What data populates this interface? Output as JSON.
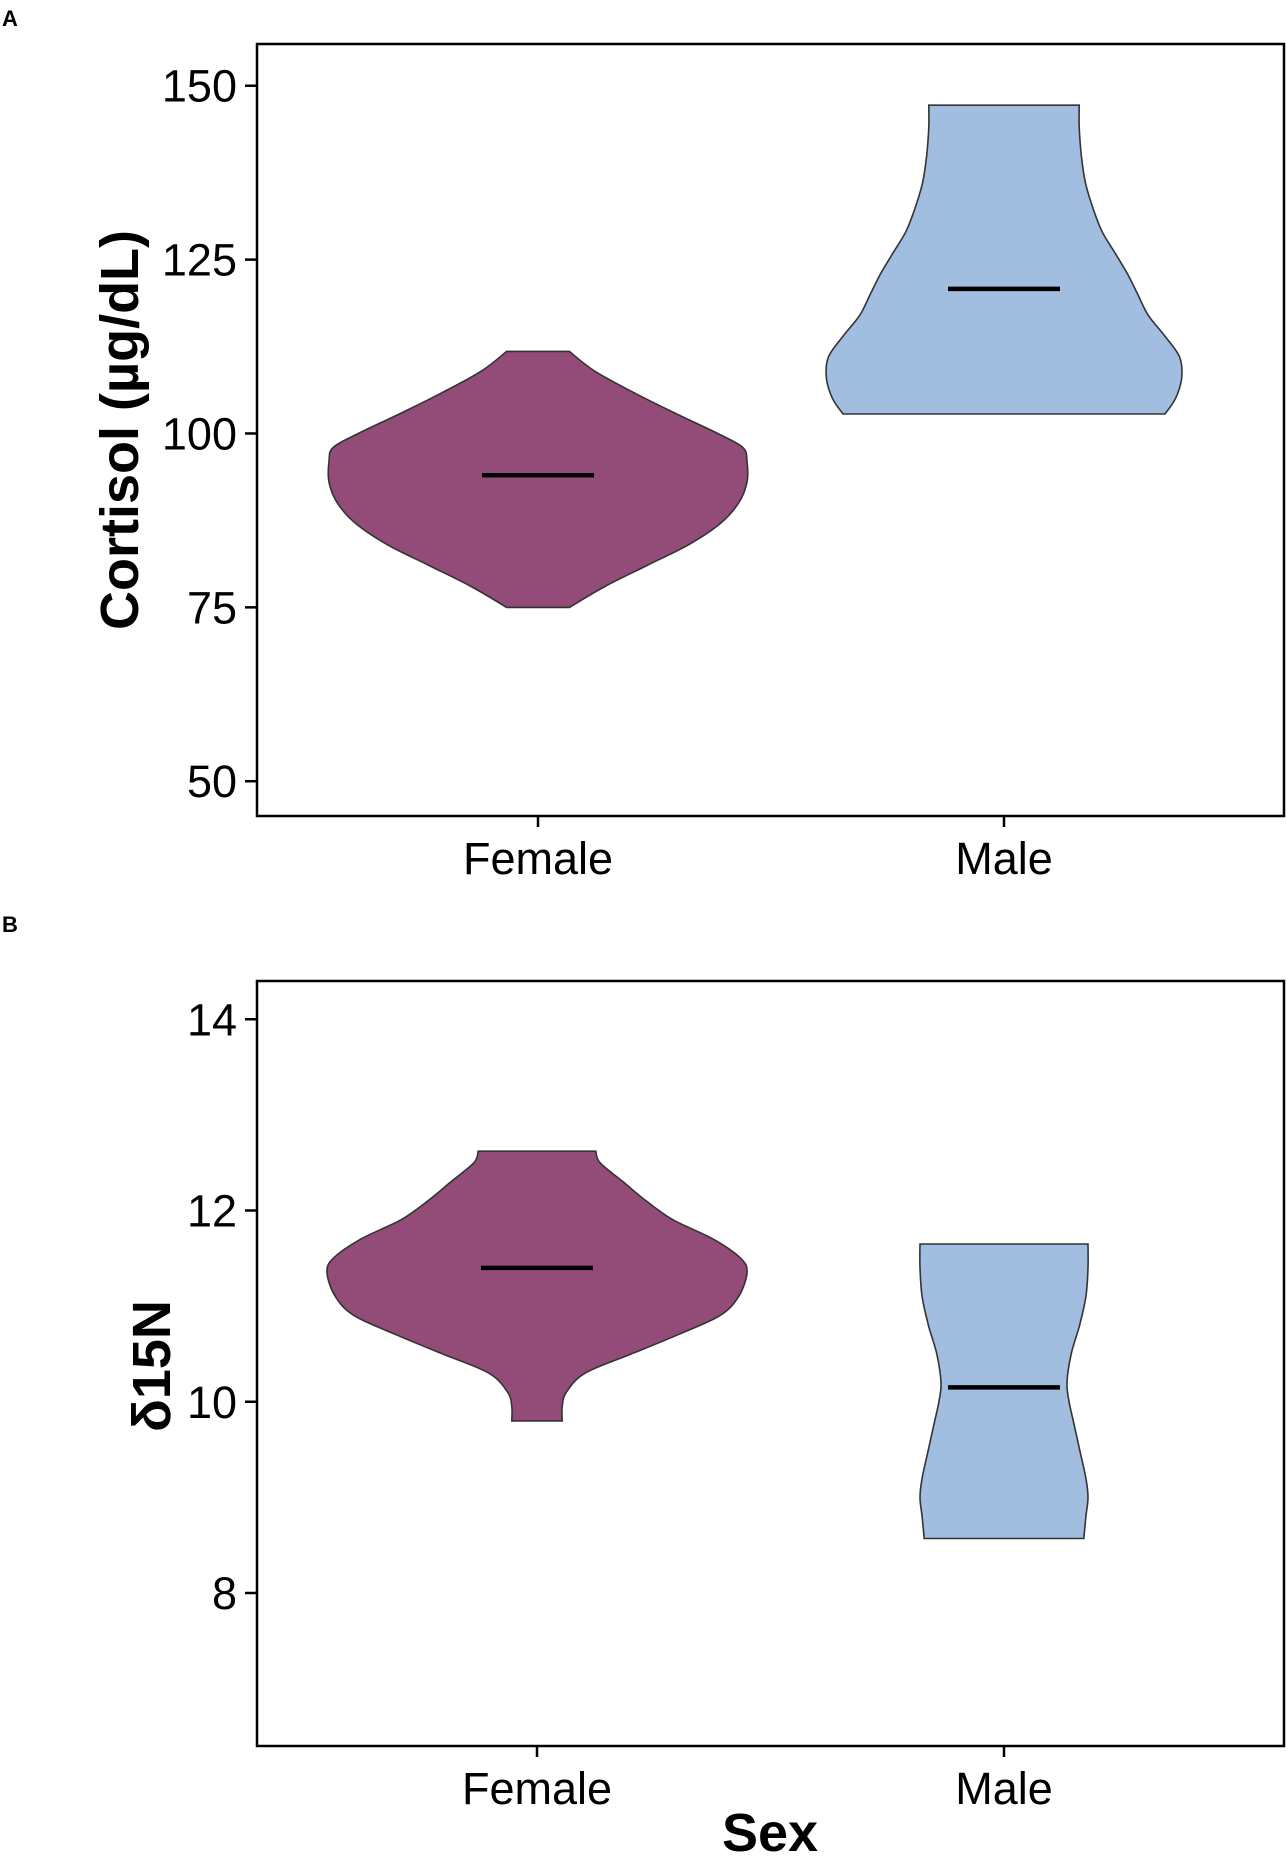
{
  "chart_data": [
    {
      "type": "violin",
      "panel": "A",
      "xlabel": "",
      "ylabel": "Cortisol (µg/dL)",
      "ylim": [
        45,
        156
      ],
      "yticks": [
        50,
        75,
        100,
        125,
        150
      ],
      "categories": [
        "Female",
        "Male"
      ],
      "grid": false,
      "series": [
        {
          "category": "Female",
          "color": "#934C77",
          "min": 75,
          "max": 111.8,
          "median": 94,
          "profile": [
            [
              75,
              0.15
            ],
            [
              78,
              0.32
            ],
            [
              81,
              0.52
            ],
            [
              84,
              0.72
            ],
            [
              87,
              0.87
            ],
            [
              90,
              0.96
            ],
            [
              93,
              1.0
            ],
            [
              96,
              1.0
            ],
            [
              98,
              0.98
            ],
            [
              100,
              0.86
            ],
            [
              103,
              0.65
            ],
            [
              106,
              0.45
            ],
            [
              109,
              0.27
            ],
            [
              111.8,
              0.15
            ]
          ]
        },
        {
          "category": "Male",
          "color": "#A1BDE0",
          "min": 102.8,
          "max": 147.2,
          "median": 120.8,
          "profile": [
            [
              102.8,
              0.77
            ],
            [
              105,
              0.82
            ],
            [
              108,
              0.85
            ],
            [
              111,
              0.84
            ],
            [
              114,
              0.77
            ],
            [
              117,
              0.69
            ],
            [
              120,
              0.64
            ],
            [
              123,
              0.59
            ],
            [
              126,
              0.53
            ],
            [
              129,
              0.47
            ],
            [
              132,
              0.43
            ],
            [
              136,
              0.39
            ],
            [
              140,
              0.37
            ],
            [
              144,
              0.36
            ],
            [
              147.2,
              0.36
            ]
          ]
        }
      ]
    },
    {
      "type": "violin",
      "panel": "B",
      "xlabel": "Sex",
      "ylabel": "δ15N",
      "ylim": [
        6.4,
        14.4
      ],
      "yticks": [
        8,
        10,
        12,
        14
      ],
      "categories": [
        "Female",
        "Male"
      ],
      "grid": false,
      "series": [
        {
          "category": "Female",
          "color": "#934C77",
          "min": 9.8,
          "max": 12.62,
          "median": 11.4,
          "profile": [
            [
              9.8,
              0.12
            ],
            [
              9.95,
              0.12
            ],
            [
              10.1,
              0.14
            ],
            [
              10.3,
              0.23
            ],
            [
              10.5,
              0.45
            ],
            [
              10.7,
              0.67
            ],
            [
              10.9,
              0.87
            ],
            [
              11.1,
              0.96
            ],
            [
              11.35,
              1.0
            ],
            [
              11.5,
              0.97
            ],
            [
              11.7,
              0.84
            ],
            [
              11.9,
              0.65
            ],
            [
              12.1,
              0.52
            ],
            [
              12.3,
              0.41
            ],
            [
              12.5,
              0.3
            ],
            [
              12.62,
              0.28
            ]
          ]
        },
        {
          "category": "Male",
          "color": "#A1BDE0",
          "min": 8.57,
          "max": 11.65,
          "median": 10.15,
          "profile": [
            [
              8.57,
              0.38
            ],
            [
              8.8,
              0.39
            ],
            [
              9.0,
              0.4
            ],
            [
              9.2,
              0.39
            ],
            [
              9.5,
              0.36
            ],
            [
              9.8,
              0.33
            ],
            [
              10.0,
              0.31
            ],
            [
              10.2,
              0.3
            ],
            [
              10.5,
              0.32
            ],
            [
              10.8,
              0.36
            ],
            [
              11.1,
              0.39
            ],
            [
              11.4,
              0.4
            ],
            [
              11.65,
              0.4
            ]
          ]
        }
      ]
    }
  ]
}
